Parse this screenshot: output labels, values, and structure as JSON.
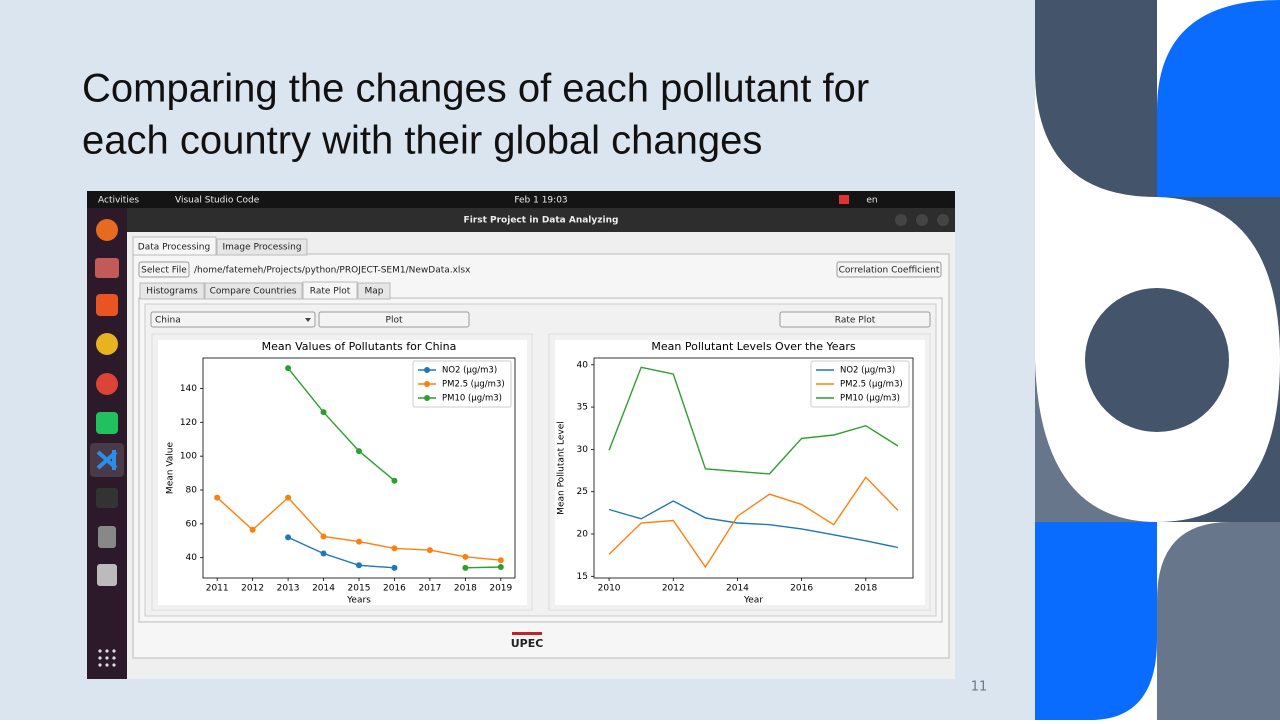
{
  "slide": {
    "title_lines": [
      "Comparing the changes of each pollutant for",
      "each country with their global changes"
    ],
    "page_number": "11"
  },
  "screen": {
    "top_bar": {
      "activities": "Activities",
      "app": "Visual Studio Code",
      "clock": "Feb 1  19:03",
      "language": "en"
    },
    "window": {
      "title": "First Project in Data Analyzing",
      "tabs": [
        "Data Processing",
        "Image Processing"
      ],
      "select_file": "Select File",
      "file_path": "/home/fatemeh/Projects/python/PROJECT-SEM1/NewData.xlsx",
      "correlation_button": "Correlation Coefficient",
      "sub_tabs": [
        "Histograms",
        "Compare Countries",
        "Rate Plot",
        "Map"
      ],
      "country": "China",
      "plot_button": "Plot",
      "rate_plot_button": "Rate Plot",
      "logo": "UPEC"
    }
  },
  "chart_data": [
    {
      "type": "line",
      "title": "Mean Values of Pollutants for China",
      "x_label": "Years",
      "y_label": "Mean Value",
      "x": [
        2011,
        2012,
        2013,
        2014,
        2015,
        2016,
        2017,
        2018,
        2019
      ],
      "series": [
        {
          "name": "NO2 (µg/m3)",
          "color": "#1f77b4",
          "values": [
            null,
            null,
            52,
            42.5,
            35.5,
            34,
            null,
            null,
            null
          ]
        },
        {
          "name": "PM2.5 (µg/m3)",
          "color": "#ff7f0e",
          "values": [
            75.5,
            56.5,
            75.5,
            52.5,
            49.5,
            45.5,
            44.5,
            40.5,
            38.5
          ]
        },
        {
          "name": "PM10 (µg/m3)",
          "color": "#2ca02c",
          "values": [
            null,
            null,
            152,
            126,
            103,
            85.5,
            null,
            34,
            34.5
          ]
        }
      ],
      "xlim": [
        2010.6,
        2019.4
      ],
      "ylim": [
        28,
        158
      ],
      "xticks": [
        2011,
        2012,
        2013,
        2014,
        2015,
        2016,
        2017,
        2018,
        2019
      ],
      "yticks": [
        40,
        60,
        80,
        100,
        120,
        140
      ],
      "legend": "upper right",
      "markers": true
    },
    {
      "type": "line",
      "title": "Mean Pollutant Levels Over the Years",
      "x_label": "Year",
      "y_label": "Mean Pollutant Level",
      "x": [
        2010,
        2011,
        2012,
        2013,
        2014,
        2015,
        2016,
        2017,
        2018,
        2019
      ],
      "series": [
        {
          "name": "NO2 (µg/m3)",
          "color": "#1f77b4",
          "values": [
            22.9,
            21.8,
            23.9,
            21.9,
            21.3,
            21.1,
            20.6,
            19.9,
            19.2,
            18.4
          ]
        },
        {
          "name": "PM2.5 (µg/m3)",
          "color": "#ff7f0e",
          "values": [
            17.6,
            21.3,
            21.6,
            16.1,
            22.1,
            24.7,
            23.5,
            21.1,
            26.7,
            22.8
          ]
        },
        {
          "name": "PM10 (µg/m3)",
          "color": "#2ca02c",
          "values": [
            29.9,
            39.7,
            38.9,
            27.7,
            27.4,
            27.1,
            31.3,
            31.7,
            32.8,
            30.4
          ]
        }
      ],
      "xlim": [
        2009.53,
        2019.47
      ],
      "ylim": [
        14.8,
        40.8
      ],
      "xticks": [
        2010,
        2012,
        2014,
        2016,
        2018
      ],
      "yticks": [
        15,
        20,
        25,
        30,
        35,
        40
      ],
      "legend": "upper right",
      "markers": false
    }
  ]
}
